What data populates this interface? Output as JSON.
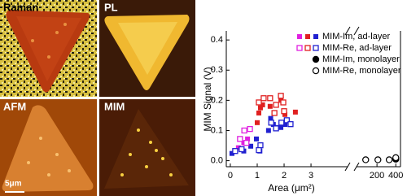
{
  "panels": {
    "raman": "Raman",
    "pl": "PL",
    "afm": "AFM",
    "mim": "MIM",
    "scale_bar": "5μm"
  },
  "chart_data": {
    "type": "scatter",
    "xlabel": "Area (μm²)",
    "ylabel": "MIM Signal (V)",
    "xlim": [
      -0.15,
      4.3
    ],
    "xticks": [
      0,
      1,
      2,
      3
    ],
    "x2lim": [
      0,
      450
    ],
    "x2ticks": [
      200,
      400
    ],
    "ylim": [
      -0.02,
      0.43
    ],
    "yticks": [
      {
        "value": 0,
        "label": "0.0"
      },
      0.1,
      0.2,
      0.3,
      0.4
    ],
    "series": [
      {
        "name": "MIM-Im, ad-layer",
        "marker": "square",
        "filled": true,
        "legend_colors": [
          "#e020e0",
          "#e02020",
          "#2020d0"
        ],
        "x": [
          0.3,
          0.5,
          0.64,
          0.06,
          0.5,
          0.76,
          0.97,
          1.1,
          1.42,
          1.6,
          1.73,
          1.88,
          2.03,
          1.5,
          1.0,
          1.12,
          1.2,
          1.06,
          1.48,
          1.88,
          2.03,
          2.42
        ],
        "values": [
          0.043,
          0.059,
          0.072,
          0.024,
          0.032,
          0.048,
          0.072,
          0.032,
          0.1,
          0.12,
          0.11,
          0.11,
          0.12,
          0.14,
          0.126,
          0.175,
          0.185,
          0.158,
          0.18,
          0.2,
          0.153,
          0.161
        ],
        "colors": [
          "#e020e0",
          "#e020e0",
          "#e020e0",
          "#2020d0",
          "#2020d0",
          "#2020d0",
          "#2020d0",
          "#2020d0",
          "#2020d0",
          "#2020d0",
          "#2020d0",
          "#2020d0",
          "#2020d0",
          "#2020d0",
          "#e02020",
          "#e02020",
          "#e02020",
          "#e02020",
          "#e02020",
          "#e02020",
          "#e02020",
          "#e02020"
        ]
      },
      {
        "name": "MIM-Re, ad-layer",
        "marker": "square",
        "filled": false,
        "legend_colors": [
          "#e020e0",
          "#e02020",
          "#2020d0"
        ],
        "x": [
          0.36,
          0.52,
          0.73,
          0.6,
          0.18,
          0.42,
          1.12,
          1.06,
          1.52,
          1.7,
          1.9,
          2.1,
          2.24,
          1.06,
          1.24,
          1.48,
          1.7,
          1.88,
          1.97,
          2.0,
          1.64
        ],
        "values": [
          0.072,
          0.1,
          0.105,
          0.059,
          0.032,
          0.038,
          0.051,
          0.035,
          0.126,
          0.107,
          0.126,
          0.134,
          0.121,
          0.193,
          0.207,
          0.207,
          0.185,
          0.215,
          0.193,
          0.164,
          0.158
        ],
        "colors": [
          "#e020e0",
          "#e020e0",
          "#e020e0",
          "#e020e0",
          "#2020d0",
          "#2020d0",
          "#2020d0",
          "#2020d0",
          "#2020d0",
          "#2020d0",
          "#2020d0",
          "#2020d0",
          "#2020d0",
          "#e02020",
          "#e02020",
          "#e02020",
          "#e02020",
          "#e02020",
          "#e02020",
          "#e02020",
          "#e02020"
        ]
      },
      {
        "name": "MIM-Im, monolayer",
        "marker": "circle",
        "filled": true,
        "color": "#000000",
        "axis": "x2",
        "x": [
          400
        ],
        "values": [
          0.005
        ]
      },
      {
        "name": "MIM-Re, monolayer",
        "marker": "circle",
        "filled": false,
        "color": "#000000",
        "axis": "x2",
        "x": [
          80,
          210,
          330,
          400
        ],
        "values": [
          0.003,
          0.003,
          0.003,
          0.01
        ]
      }
    ]
  }
}
